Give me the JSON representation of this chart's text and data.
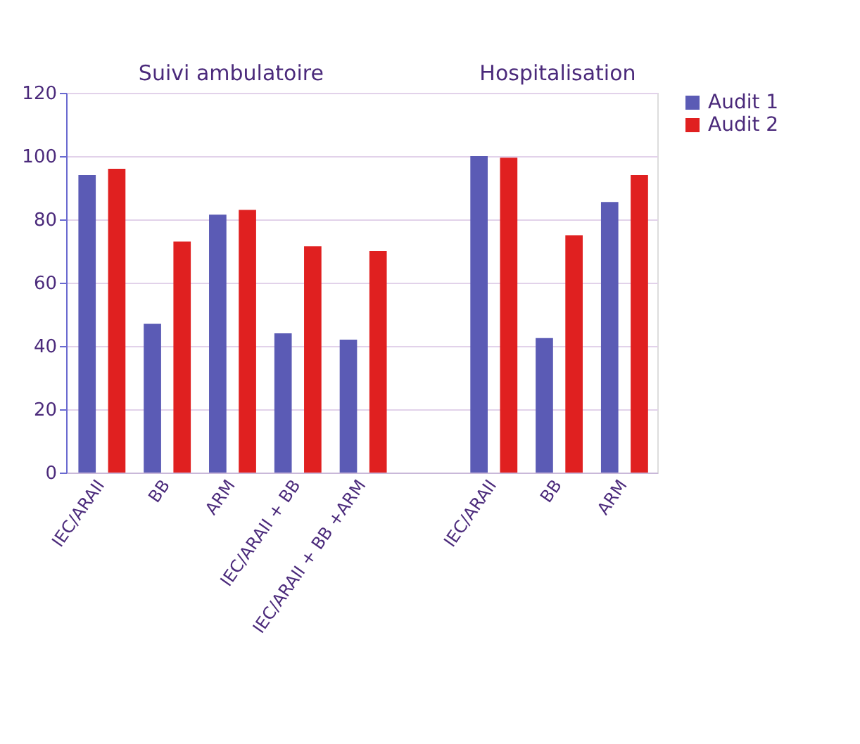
{
  "chart_data": {
    "type": "bar",
    "categories": [
      "IEC/ARAII",
      "BB",
      "ARM",
      "IEC/ARAII + BB",
      "IEC/ARAII + BB +ARM",
      null,
      "IEC/ARAII",
      "BB",
      "ARM"
    ],
    "series": [
      {
        "name": "Audit 1",
        "color": "#5b5bb5",
        "values": [
          94,
          47,
          81.5,
          44,
          42,
          null,
          100,
          42.5,
          85.5
        ]
      },
      {
        "name": "Audit 2",
        "color": "#e02020",
        "values": [
          96,
          73,
          83,
          71.5,
          70,
          null,
          99.5,
          75,
          94
        ]
      }
    ],
    "annotations": [
      "Suivi ambulatoire",
      "Hospitalisation"
    ],
    "ylim": [
      0,
      120
    ],
    "yticks": [
      0,
      20,
      40,
      60,
      80,
      100,
      120
    ],
    "grid": "y",
    "legend": "right"
  }
}
